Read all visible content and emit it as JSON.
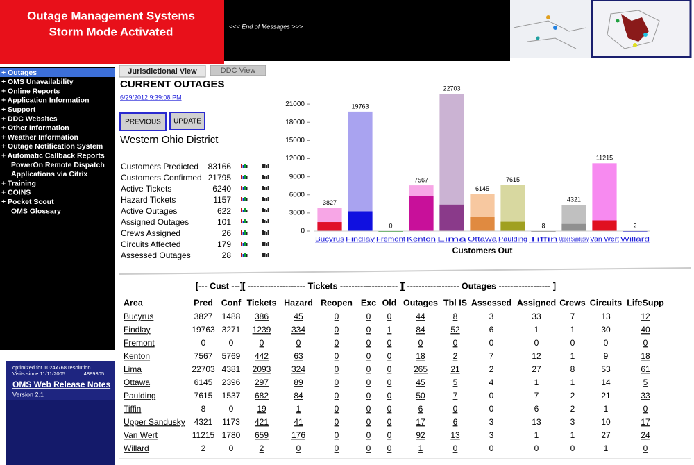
{
  "header": {
    "title_line1": "Outage Management Systems",
    "title_line2": "Storm Mode Activated",
    "messages": "<<< End of Messages >>>"
  },
  "nav": {
    "items": [
      "+ Outages",
      "+ OMS Unavailability",
      "+ Online Reports",
      "+ Application Information",
      "+ Support",
      "+ DDC Websites",
      "+ Other Information",
      "+ Weather Information",
      "+ Outage Notification System",
      "+ Automatic Callback Reports",
      "PowerOn Remote Dispatch",
      "Applications via Citrix",
      "+ Training",
      "+ COINS",
      "+ Pocket Scout",
      "OMS Glossary"
    ]
  },
  "info_box": {
    "resolution_note": "optimized for 1024x768 resolution",
    "visits_label": "Visits since 11/11/2005",
    "visits_count": "4889305",
    "release_notes": "OMS Web Release Notes",
    "version": "Version 2.1"
  },
  "tabs": [
    "Jurisdictional View",
    "DDC View"
  ],
  "page": {
    "heading": "CURRENT OUTAGES",
    "timestamp": "6/29/2012 9:39:08 PM",
    "buttons": [
      "PREVIOUS",
      "UPDATE"
    ],
    "district": "Western Ohio District"
  },
  "stats": [
    {
      "label": "Customers Predicted",
      "value": 83166
    },
    {
      "label": "Customers Confirmed",
      "value": 21795
    },
    {
      "label": "Active Tickets",
      "value": 6240
    },
    {
      "label": "Hazard Tickets",
      "value": 1157
    },
    {
      "label": "Active Outages",
      "value": 622
    },
    {
      "label": "Assigned Outages",
      "value": 101
    },
    {
      "label": "Crews Assigned",
      "value": 26
    },
    {
      "label": "Circuits Affected",
      "value": 179
    },
    {
      "label": "Assessed Outages",
      "value": 28
    }
  ],
  "chart_data": {
    "type": "bar",
    "x_label": "Customers Out",
    "categories": [
      "Bucyrus",
      "Findlay",
      "Fremont",
      "Kenton",
      "Lima",
      "Ottawa",
      "Paulding",
      "Tiffin",
      "Upper Sandusky",
      "Van Wert",
      "Willard"
    ],
    "series": [
      {
        "values": [
          3827,
          19763,
          0,
          7567,
          22703,
          6145,
          7615,
          8,
          4321,
          11215,
          2
        ],
        "colors": [
          "#f7a6e6",
          "#a9a3f0",
          "#6ecb6e",
          "#f7a6e6",
          "#cbb3d3",
          "#f7c8a0",
          "#d8d8a0",
          "#c0c0c0",
          "#c0c0c0",
          "#f78af0",
          "#a0a0f0"
        ]
      },
      {
        "values": [
          1488,
          3271,
          0,
          5769,
          4381,
          2396,
          1537,
          0,
          1173,
          1780,
          0
        ],
        "colors": [
          "#e0102a",
          "#1010e0",
          "#20a020",
          "#c8109a",
          "#8a3a8a",
          "#e08a40",
          "#a0a020",
          "#808080",
          "#909090",
          "#e01020",
          "#2020e0"
        ]
      }
    ],
    "ylim": [
      0,
      24000
    ],
    "yticks": [
      0,
      3000,
      6000,
      9000,
      12000,
      15000,
      18000,
      21000
    ],
    "value_labels": true
  },
  "table": {
    "group_headers": [
      "[--- Cust ---]",
      "[ -------------------- Tickets -------------------- ]",
      "[ ------------------ Outages ------------------ ]"
    ],
    "columns": [
      "Area",
      "Pred",
      "Conf",
      "Tickets",
      "Hazard",
      "Reopen",
      "Exc",
      "Old",
      "Outages",
      "Tbl IS",
      "Assessed",
      "Assigned",
      "Crews",
      "Circuits",
      "LifeSupp"
    ],
    "rows": [
      [
        "Bucyrus",
        3827,
        1488,
        386,
        45,
        0,
        0,
        0,
        44,
        8,
        3,
        33,
        7,
        13,
        12
      ],
      [
        "Findlay",
        19763,
        3271,
        1239,
        334,
        0,
        0,
        1,
        84,
        52,
        6,
        1,
        1,
        30,
        40
      ],
      [
        "Fremont",
        0,
        0,
        0,
        0,
        0,
        0,
        0,
        0,
        0,
        0,
        0,
        0,
        0,
        0
      ],
      [
        "Kenton",
        7567,
        5769,
        442,
        63,
        0,
        0,
        0,
        18,
        2,
        7,
        12,
        1,
        9,
        18
      ],
      [
        "Lima",
        22703,
        4381,
        2093,
        324,
        0,
        0,
        0,
        265,
        21,
        2,
        27,
        8,
        53,
        61
      ],
      [
        "Ottawa",
        6145,
        2396,
        297,
        89,
        0,
        0,
        0,
        45,
        5,
        4,
        1,
        1,
        14,
        5
      ],
      [
        "Paulding",
        7615,
        1537,
        682,
        84,
        0,
        0,
        0,
        50,
        7,
        0,
        7,
        2,
        21,
        33
      ],
      [
        "Tiffin",
        8,
        0,
        19,
        1,
        0,
        0,
        0,
        6,
        0,
        0,
        6,
        2,
        1,
        0
      ],
      [
        "Upper Sandusky",
        4321,
        1173,
        421,
        41,
        0,
        0,
        0,
        17,
        6,
        3,
        13,
        3,
        10,
        17
      ],
      [
        "Van Wert",
        11215,
        1780,
        659,
        176,
        0,
        0,
        0,
        92,
        13,
        3,
        1,
        1,
        27,
        24
      ],
      [
        "Willard",
        2,
        0,
        2,
        0,
        0,
        0,
        0,
        1,
        0,
        0,
        0,
        0,
        1,
        0
      ]
    ]
  }
}
